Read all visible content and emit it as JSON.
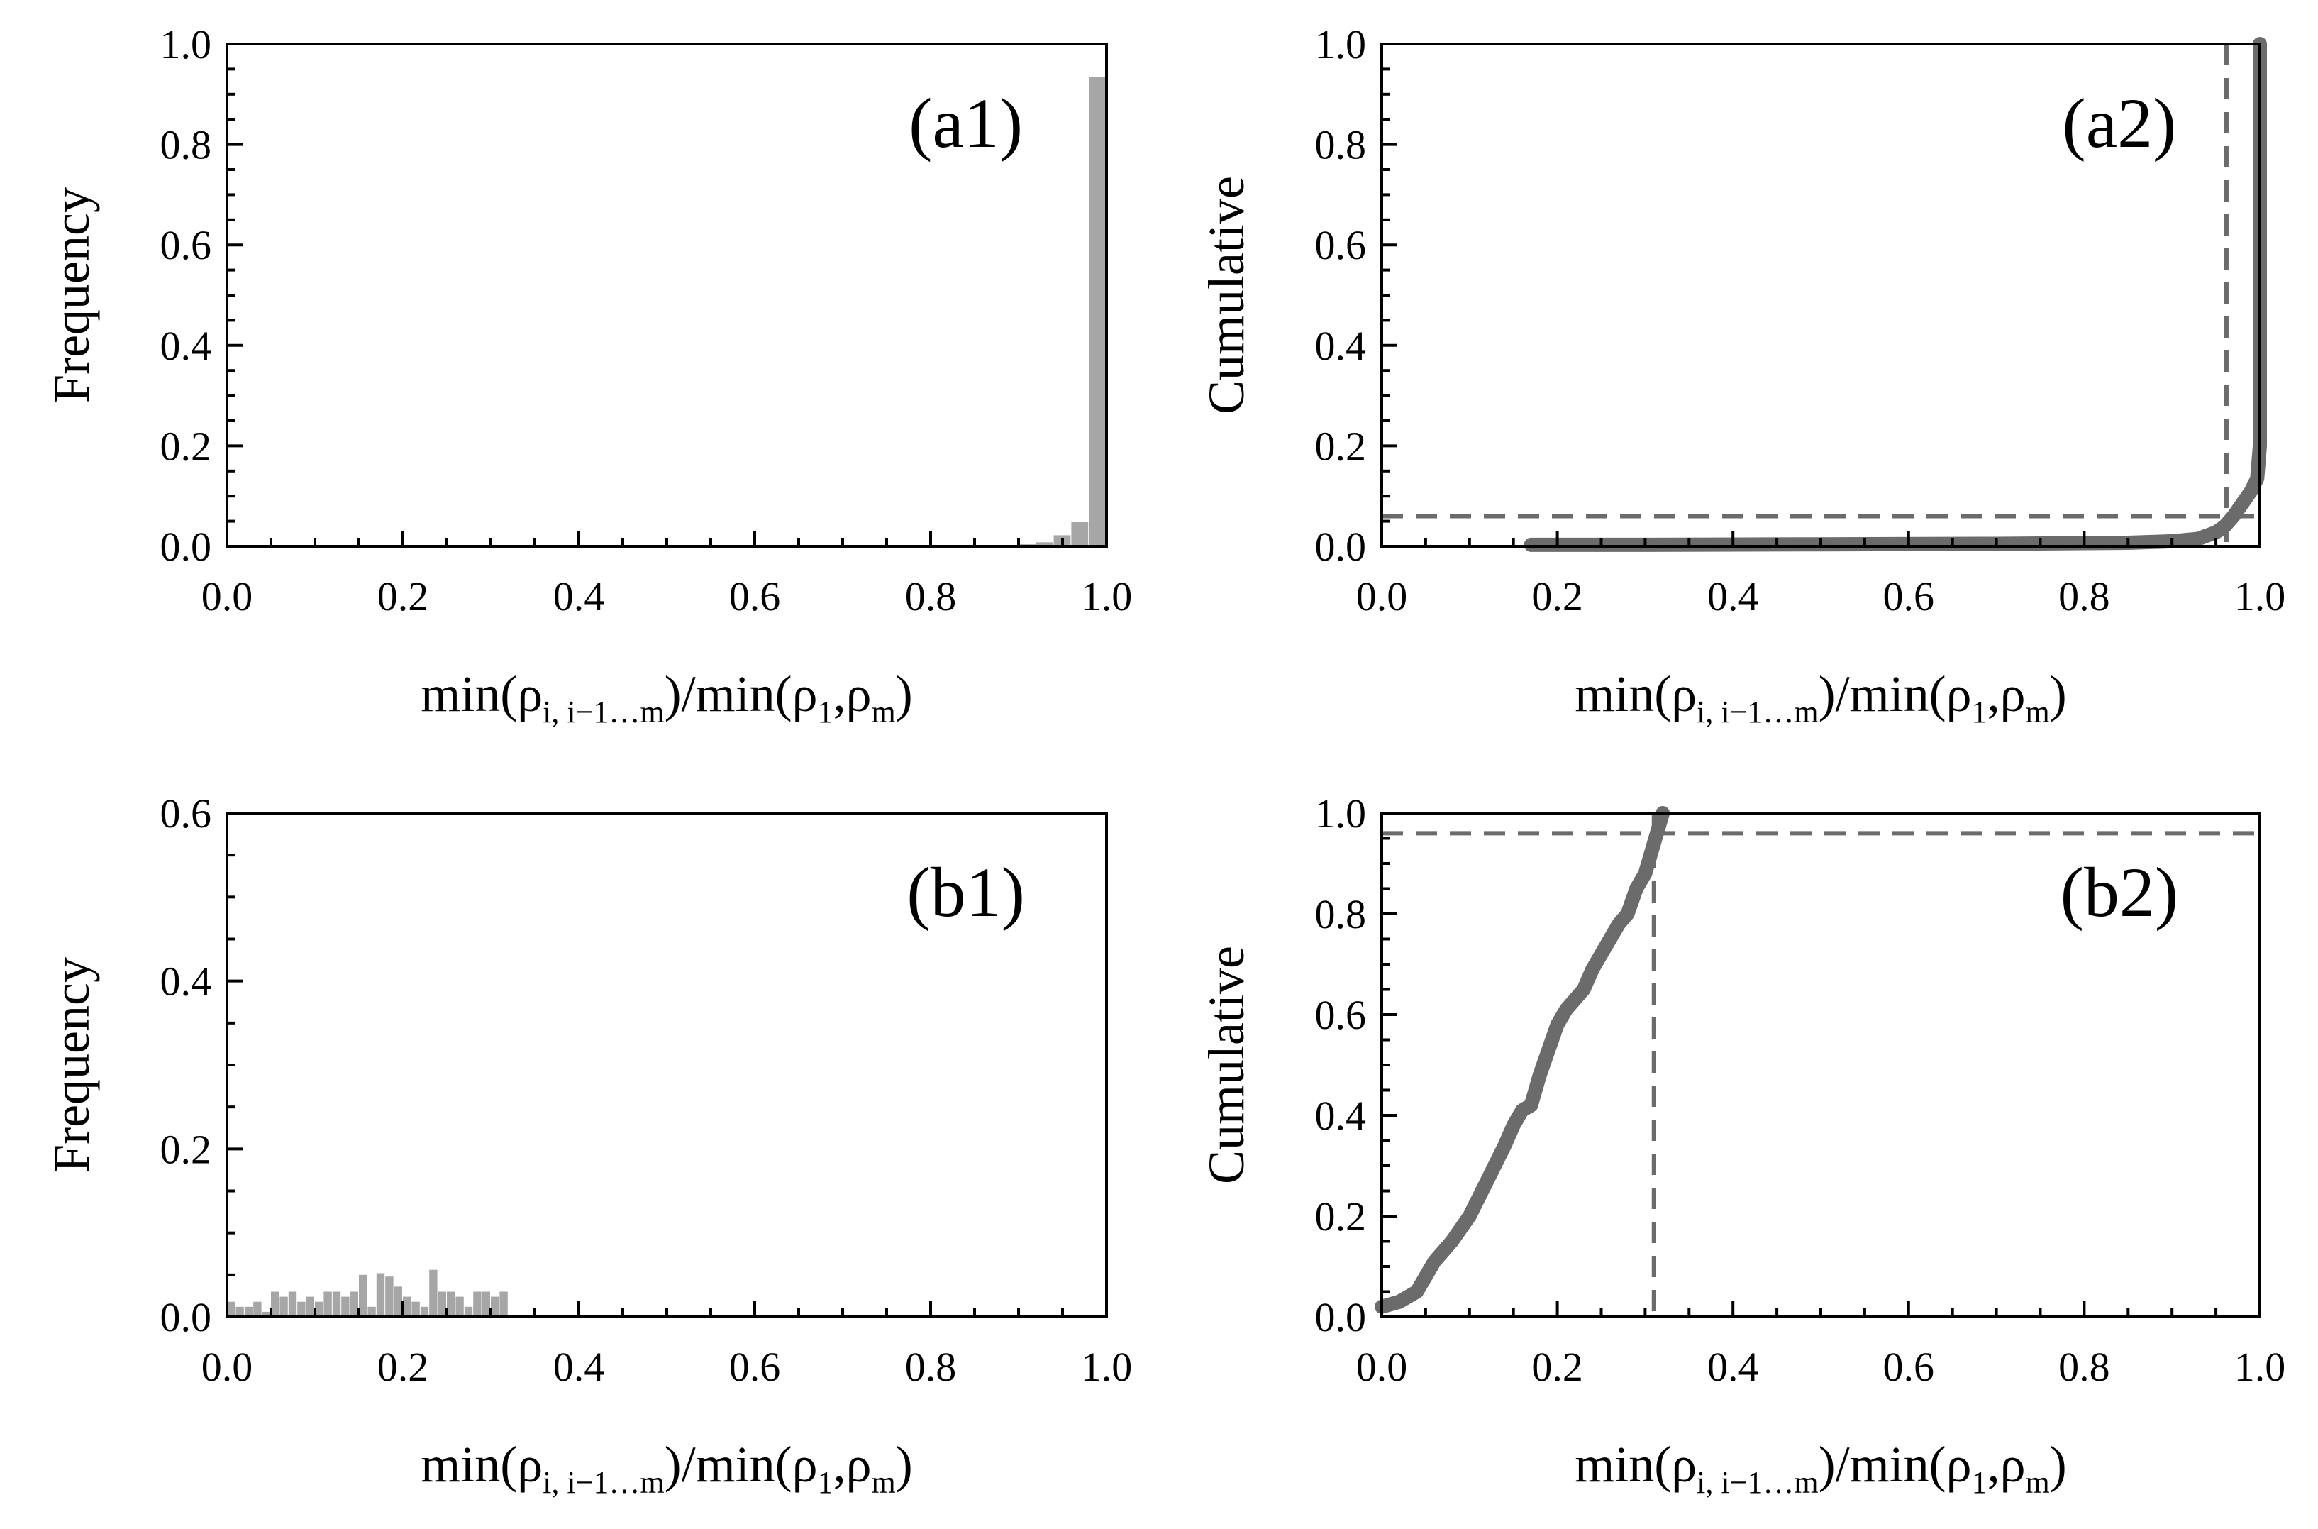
{
  "chart_data": [
    {
      "panel": "a1",
      "type": "bar",
      "tag": "(a1)",
      "xlabel": {
        "pre": "min(ρ",
        "s1": "i, i−1…m",
        "mid": ")/min(ρ",
        "s2": "1",
        "comma": ",ρ",
        "s3": "m",
        "post": ")"
      },
      "ylabel": "Frequency",
      "xlim": [
        0,
        1
      ],
      "ylim": [
        0,
        1
      ],
      "xticks": [
        "0.0",
        "0.2",
        "0.4",
        "0.6",
        "0.8",
        "1.0"
      ],
      "yticks": [
        "0.0",
        "0.2",
        "0.4",
        "0.6",
        "0.8",
        "1.0"
      ],
      "bin_width": 0.02,
      "bins": [
        {
          "x": 0.9,
          "y": 0.004
        },
        {
          "x": 0.92,
          "y": 0.008
        },
        {
          "x": 0.94,
          "y": 0.022
        },
        {
          "x": 0.96,
          "y": 0.048
        },
        {
          "x": 0.98,
          "y": 0.935
        }
      ]
    },
    {
      "panel": "a2",
      "type": "line",
      "tag": "(a2)",
      "xlabel": {
        "pre": "min(ρ",
        "s1": "i, i−1…m",
        "mid": ")/min(ρ",
        "s2": "1",
        "comma": ",ρ",
        "s3": "m",
        "post": ")"
      },
      "ylabel": "Cumulative",
      "xlim": [
        0,
        1
      ],
      "ylim": [
        0,
        1
      ],
      "xticks": [
        "0.0",
        "0.2",
        "0.4",
        "0.6",
        "0.8",
        "1.0"
      ],
      "yticks": [
        "0.0",
        "0.2",
        "0.4",
        "0.6",
        "0.8",
        "1.0"
      ],
      "x": [
        0.17,
        0.3,
        0.5,
        0.7,
        0.85,
        0.9,
        0.93,
        0.95,
        0.96,
        0.97,
        0.98,
        0.99,
        0.997,
        1.0,
        1.0
      ],
      "y": [
        0.003,
        0.003,
        0.004,
        0.005,
        0.007,
        0.01,
        0.015,
        0.028,
        0.04,
        0.06,
        0.085,
        0.11,
        0.135,
        0.2,
        1.0
      ],
      "hline": 0.06,
      "vline": 0.962
    },
    {
      "panel": "b1",
      "type": "bar",
      "tag": "(b1)",
      "xlabel": {
        "pre": "min(ρ",
        "s1": "i, i−1…m",
        "mid": ")/min(ρ",
        "s2": "1",
        "comma": ",ρ",
        "s3": "m",
        "post": ")"
      },
      "ylabel": "Frequency",
      "xlim": [
        0,
        1
      ],
      "ylim": [
        0,
        0.6
      ],
      "xticks": [
        "0.0",
        "0.2",
        "0.4",
        "0.6",
        "0.8",
        "1.0"
      ],
      "yticks": [
        "0.0",
        "0.2",
        "0.4",
        "0.6"
      ],
      "bin_width": 0.01,
      "bins": [
        {
          "x": 0.0,
          "y": 0.018
        },
        {
          "x": 0.01,
          "y": 0.012
        },
        {
          "x": 0.02,
          "y": 0.012
        },
        {
          "x": 0.03,
          "y": 0.018
        },
        {
          "x": 0.04,
          "y": 0.006
        },
        {
          "x": 0.05,
          "y": 0.03
        },
        {
          "x": 0.06,
          "y": 0.024
        },
        {
          "x": 0.07,
          "y": 0.03
        },
        {
          "x": 0.08,
          "y": 0.018
        },
        {
          "x": 0.09,
          "y": 0.024
        },
        {
          "x": 0.1,
          "y": 0.018
        },
        {
          "x": 0.11,
          "y": 0.03
        },
        {
          "x": 0.12,
          "y": 0.03
        },
        {
          "x": 0.13,
          "y": 0.024
        },
        {
          "x": 0.14,
          "y": 0.03
        },
        {
          "x": 0.15,
          "y": 0.05
        },
        {
          "x": 0.16,
          "y": 0.012
        },
        {
          "x": 0.17,
          "y": 0.052
        },
        {
          "x": 0.18,
          "y": 0.048
        },
        {
          "x": 0.19,
          "y": 0.036
        },
        {
          "x": 0.2,
          "y": 0.024
        },
        {
          "x": 0.21,
          "y": 0.018
        },
        {
          "x": 0.22,
          "y": 0.012
        },
        {
          "x": 0.23,
          "y": 0.056
        },
        {
          "x": 0.24,
          "y": 0.03
        },
        {
          "x": 0.25,
          "y": 0.03
        },
        {
          "x": 0.26,
          "y": 0.024
        },
        {
          "x": 0.27,
          "y": 0.012
        },
        {
          "x": 0.28,
          "y": 0.03
        },
        {
          "x": 0.29,
          "y": 0.03
        },
        {
          "x": 0.3,
          "y": 0.024
        },
        {
          "x": 0.31,
          "y": 0.03
        }
      ]
    },
    {
      "panel": "b2",
      "type": "line",
      "tag": "(b2)",
      "xlabel": {
        "pre": "min(ρ",
        "s1": "i, i−1…m",
        "mid": ")/min(ρ",
        "s2": "1",
        "comma": ",ρ",
        "s3": "m",
        "post": ")"
      },
      "ylabel": "Cumulative",
      "xlim": [
        0,
        1
      ],
      "ylim": [
        0,
        1
      ],
      "xticks": [
        "0.0",
        "0.2",
        "0.4",
        "0.6",
        "0.8",
        "1.0"
      ],
      "yticks": [
        "0.0",
        "0.2",
        "0.4",
        "0.6",
        "0.8",
        "1.0"
      ],
      "x": [
        0.0,
        0.02,
        0.04,
        0.05,
        0.06,
        0.08,
        0.1,
        0.12,
        0.14,
        0.15,
        0.16,
        0.17,
        0.18,
        0.19,
        0.2,
        0.21,
        0.22,
        0.23,
        0.24,
        0.25,
        0.26,
        0.27,
        0.28,
        0.29,
        0.3,
        0.31,
        0.32
      ],
      "y": [
        0.02,
        0.03,
        0.05,
        0.08,
        0.11,
        0.15,
        0.2,
        0.27,
        0.34,
        0.38,
        0.41,
        0.42,
        0.48,
        0.53,
        0.58,
        0.61,
        0.63,
        0.65,
        0.69,
        0.72,
        0.75,
        0.78,
        0.8,
        0.85,
        0.88,
        0.94,
        1.0
      ],
      "hline": 0.96,
      "vline": 0.31
    }
  ]
}
